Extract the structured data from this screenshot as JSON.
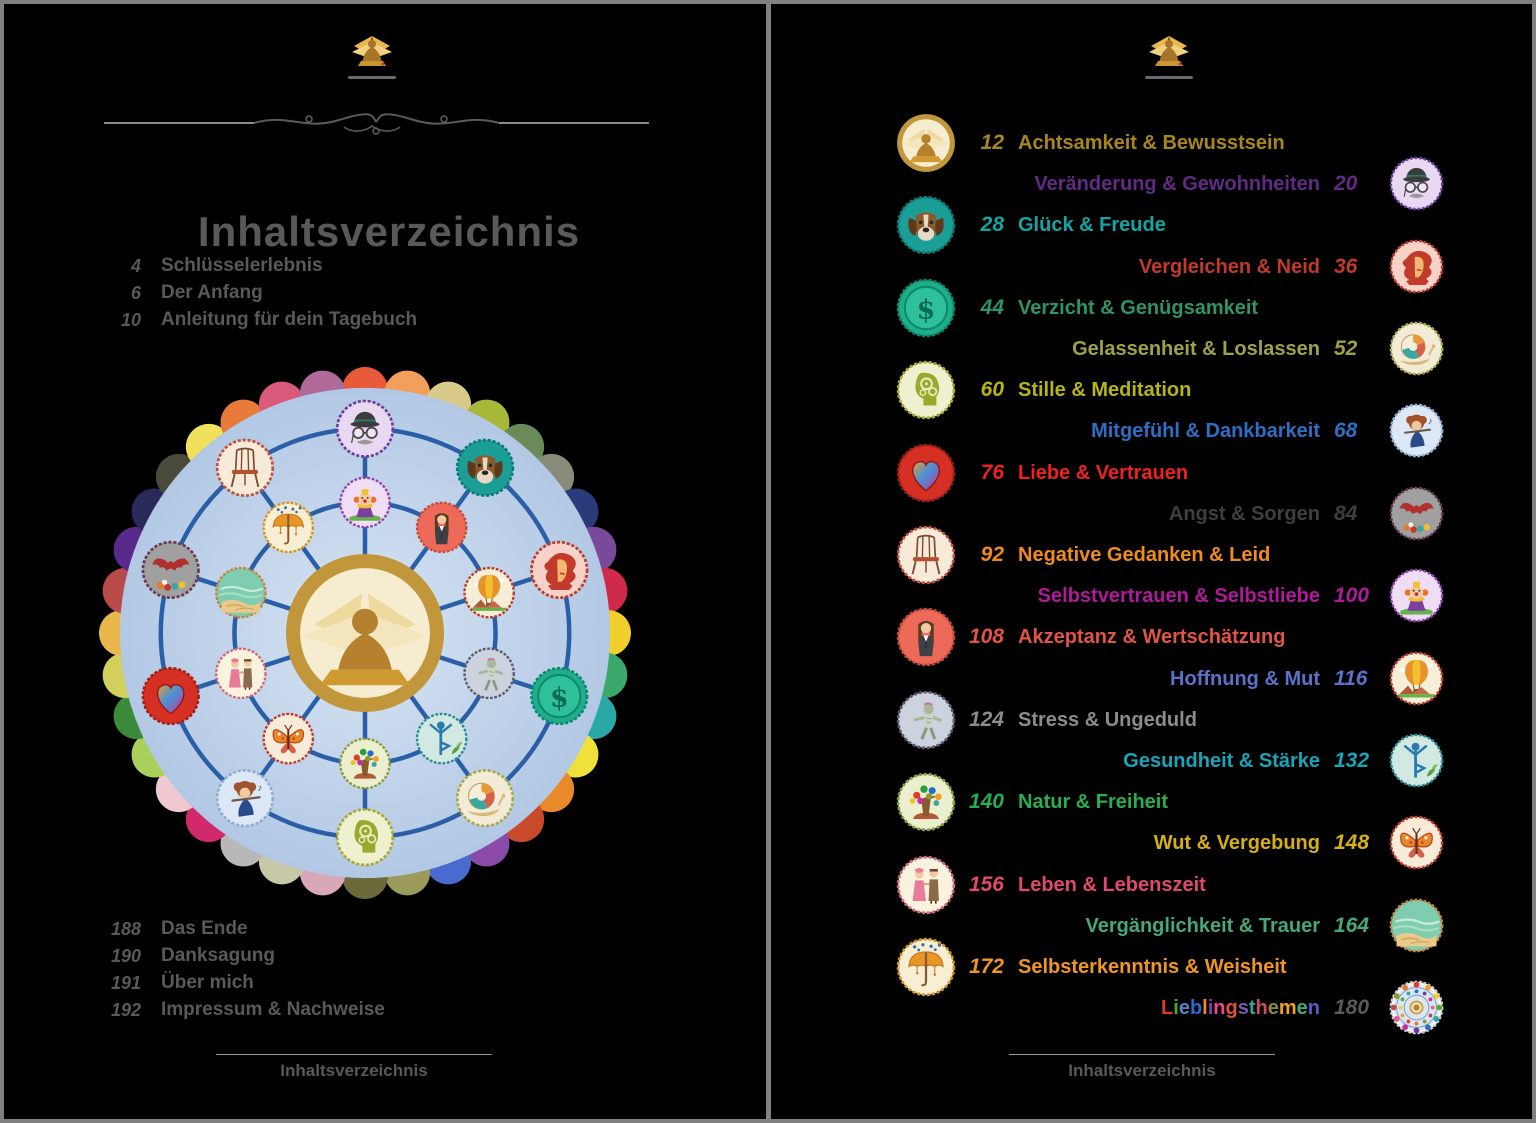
{
  "window": {
    "background": "#000000",
    "frame_color": "#808080"
  },
  "left_page": {
    "logo_icon": "winged-meditation-logo",
    "title": "Inhaltsverzeichnis",
    "front_entries": [
      {
        "page": "4",
        "label": "Schlüsselerlebnis"
      },
      {
        "page": "6",
        "label": "Der Anfang"
      },
      {
        "page": "10",
        "label": "Anleitung für dein Tagebuch"
      }
    ],
    "back_entries": [
      {
        "page": "188",
        "label": "Das Ende"
      },
      {
        "page": "190",
        "label": "Danksagung"
      },
      {
        "page": "191",
        "label": "Über mich"
      },
      {
        "page": "192",
        "label": "Impressum & Nachweise"
      }
    ],
    "footer": "Inhaltsverzeichnis",
    "mandala": {
      "center_icon": "meditation",
      "inner_ring_icons": [
        "clown",
        "woman-suit",
        "hot-air-balloon",
        "zombie",
        "yoga",
        "tree",
        "butterfly",
        "couple",
        "beach",
        "umbrella"
      ],
      "outer_ring_icons": [
        "bowler-man",
        "dog",
        "woman-red-hair",
        "dollar-coin",
        "snail",
        "head-gears",
        "flute-woman",
        "heart",
        "bat",
        "chair"
      ],
      "line_color": "#2a5fa8",
      "disc_color_center": "#d8e5f4",
      "disc_color_edge": "#b2c8e4",
      "petal_colors": [
        "#e85a3a",
        "#f0a05a",
        "#d9c98a",
        "#a8b83a",
        "#6a8a5a",
        "#8a8a7a",
        "#2a3a7a",
        "#7a4a9a",
        "#d02a4a",
        "#f0d02a",
        "#3aa86a",
        "#2aa8a8",
        "#f0e03a",
        "#e88a2a",
        "#c84a2a",
        "#8a4aa8",
        "#4a6ad0",
        "#9a9a5a",
        "#6a6a3a",
        "#d9a8b8",
        "#c8c8a8",
        "#b8b8b8",
        "#d02a6a",
        "#f0c8d0",
        "#a8d05a",
        "#3a8a3a",
        "#d0d05a",
        "#e8b84a",
        "#b84a4a",
        "#5a2a8a",
        "#2a2a5a",
        "#4a4a3a",
        "#f0e05a",
        "#e87a3a",
        "#d95a7a",
        "#b06a9a"
      ]
    }
  },
  "right_page": {
    "logo_icon": "winged-meditation-logo",
    "footer": "Inhaltsverzeichnis",
    "rows": [
      {
        "page": "12",
        "label": "Achtsamkeit & Bewusstsein",
        "color": "#a8861e",
        "icon": "meditation",
        "side": "left"
      },
      {
        "page": "20",
        "label": "Veränderung & Gewohnheiten",
        "color": "#622a85",
        "icon": "bowler-man",
        "side": "right"
      },
      {
        "page": "28",
        "label": "Glück & Freude",
        "color": "#12a5a5",
        "icon": "dog",
        "side": "left"
      },
      {
        "page": "36",
        "label": "Vergleichen & Neid",
        "color": "#bf3a2b",
        "icon": "woman-red-hair",
        "side": "right"
      },
      {
        "page": "44",
        "label": "Verzicht & Genügsamkeit",
        "color": "#2e9464",
        "icon": "dollar-coin",
        "side": "left"
      },
      {
        "page": "52",
        "label": "Gelassenheit & Loslassen",
        "color": "#a0a048",
        "icon": "snail",
        "side": "right"
      },
      {
        "page": "60",
        "label": "Stille & Meditation",
        "color": "#b5b513",
        "icon": "head-gears",
        "side": "left"
      },
      {
        "page": "68",
        "label": "Mitgefühl & Dankbarkeit",
        "color": "#2d6fc2",
        "icon": "flute-woman",
        "side": "right"
      },
      {
        "page": "76",
        "label": "Liebe & Vertrauen",
        "color": "#ee2222",
        "icon": "heart",
        "side": "left"
      },
      {
        "page": "84",
        "label": "Angst & Sorgen",
        "color": "#3f3f3f",
        "icon": "bat",
        "side": "right"
      },
      {
        "page": "92",
        "label": "Negative Gedanken & Leid",
        "color": "#f08c1e",
        "icon": "chair",
        "side": "left"
      },
      {
        "page": "100",
        "label": "Selbstvertrauen & Selbstliebe",
        "color": "#b01a9a",
        "icon": "clown",
        "side": "right"
      },
      {
        "page": "108",
        "label": "Akzeptanz & Wertschätzung",
        "color": "#e05545",
        "icon": "woman-suit",
        "side": "left"
      },
      {
        "page": "116",
        "label": "Hoffnung & Mut",
        "color": "#5b72c8",
        "icon": "hot-air-balloon",
        "side": "right"
      },
      {
        "page": "124",
        "label": "Stress & Ungeduld",
        "color": "#8c8c8c",
        "icon": "zombie",
        "side": "left"
      },
      {
        "page": "132",
        "label": "Gesundheit & Stärke",
        "color": "#19a4b8",
        "icon": "yoga",
        "side": "right"
      },
      {
        "page": "140",
        "label": "Natur & Freiheit",
        "color": "#27ae4e",
        "icon": "tree",
        "side": "left"
      },
      {
        "page": "148",
        "label": "Wut & Vergebung",
        "color": "#d4af17",
        "icon": "butterfly",
        "side": "right"
      },
      {
        "page": "156",
        "label": "Leben & Lebenszeit",
        "color": "#e04a6a",
        "icon": "couple",
        "side": "left"
      },
      {
        "page": "164",
        "label": "Vergänglichkeit & Trauer",
        "color": "#46a878",
        "icon": "beach",
        "side": "right"
      },
      {
        "page": "172",
        "label": "Selbsterkenntnis & Weisheit",
        "color": "#ef9722",
        "icon": "umbrella",
        "side": "left"
      },
      {
        "page": "180",
        "label": "Lieblingsthemen",
        "color": "#5a5a5a",
        "icon": "mandala",
        "side": "right",
        "number_color": "#5a5a5a",
        "letter_colors": [
          "#e0392a",
          "#4aa82a",
          "#5b7fbf",
          "#2a6ad0",
          "#f08c1e",
          "#8a3aa8",
          "#e84a8a",
          "#e0552a",
          "#7a5ab0",
          "#2aa8a0",
          "#d04a6a",
          "#8a8a3a",
          "#f0a02a",
          "#4aa86a",
          "#5a5ad0"
        ]
      }
    ]
  }
}
